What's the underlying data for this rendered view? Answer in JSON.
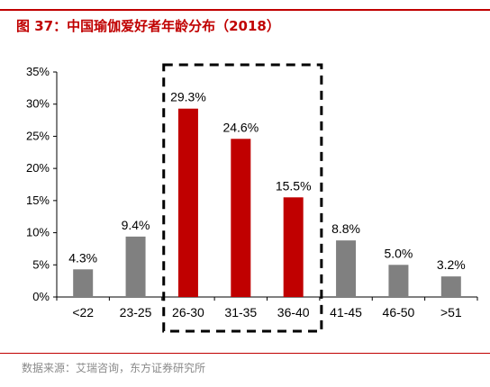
{
  "title": "图 37：中国瑜伽爱好者年龄分布（2018）",
  "source": "数据来源：艾瑞咨询，东方证券研究所",
  "colors": {
    "accent": "#c00000",
    "highlight_bar": "#c00000",
    "normal_bar": "#808080",
    "axis": "#000000"
  },
  "chart_data": {
    "type": "bar",
    "categories": [
      "<22",
      "23-25",
      "26-30",
      "31-35",
      "36-40",
      "41-45",
      "46-50",
      ">51"
    ],
    "values": [
      4.3,
      9.4,
      29.3,
      24.6,
      15.5,
      8.8,
      5.0,
      3.2
    ],
    "value_labels": [
      "4.3%",
      "9.4%",
      "29.3%",
      "24.6%",
      "15.5%",
      "8.8%",
      "5.0%",
      "3.2%"
    ],
    "highlighted_categories": [
      "26-30",
      "31-35",
      "36-40"
    ],
    "y_ticks": [
      "0%",
      "5%",
      "10%",
      "15%",
      "20%",
      "25%",
      "30%",
      "35%"
    ],
    "ylim": [
      0,
      35
    ],
    "xlabel": "",
    "ylabel": "",
    "grid": false,
    "legend": "none"
  }
}
